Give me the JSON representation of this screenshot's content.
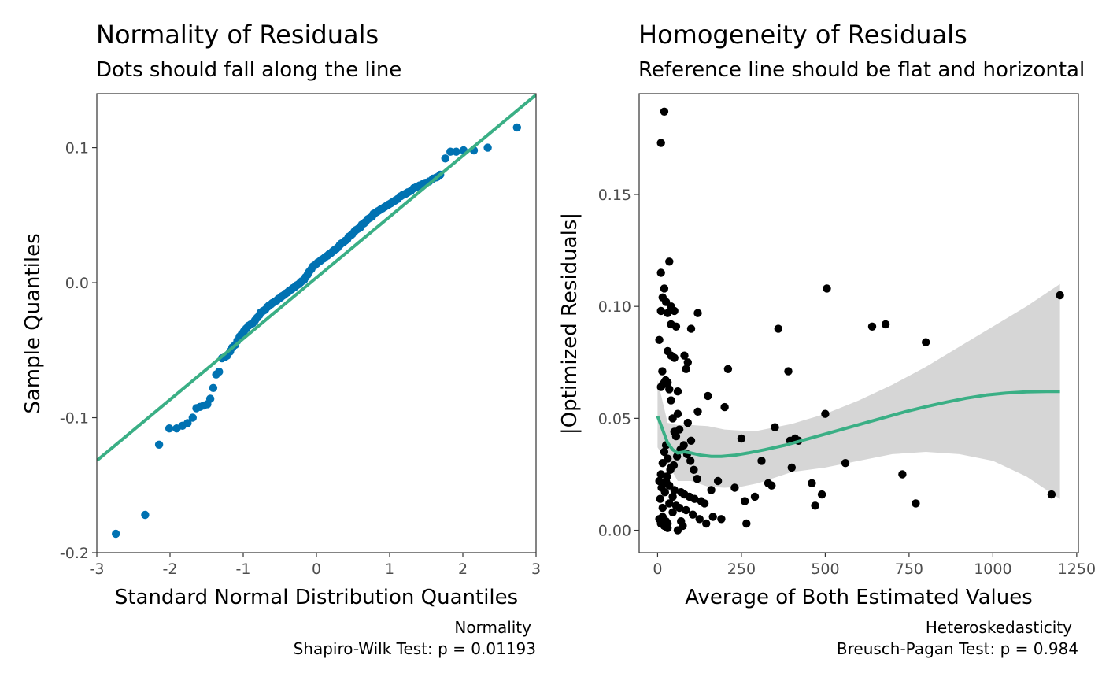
{
  "chart_data": [
    {
      "type": "scatter",
      "title": "Normality of Residuals",
      "subtitle": "Dots should fall along the line",
      "xlabel": "Standard Normal Distribution Quantiles",
      "ylabel": "Sample Quantiles",
      "xlim": [
        -3,
        3
      ],
      "ylim": [
        -0.2,
        0.14
      ],
      "xticks": [
        -3,
        -2,
        -1,
        0,
        1,
        2,
        3
      ],
      "xtick_labels": [
        "-3",
        "-2",
        "-1",
        "0",
        "1",
        "2",
        "3"
      ],
      "yticks": [
        -0.2,
        -0.1,
        0.0,
        0.1
      ],
      "ytick_labels": [
        "-0.2",
        "-0.1",
        "0.0",
        "0.1"
      ],
      "grid": false,
      "colors": {
        "points": "#0072B2",
        "line": "#3AAF85"
      },
      "reference_line": {
        "x": [
          -3,
          3
        ],
        "y": [
          -0.1318,
          0.1392
        ]
      },
      "points": {
        "x": [
          -2.74,
          -2.34,
          -2.15,
          -2.01,
          -1.91,
          -1.83,
          -1.76,
          -1.69,
          -1.64,
          -1.59,
          -1.54,
          -1.49,
          -1.45,
          -1.41,
          -1.37,
          -1.33,
          -1.29,
          -1.25,
          -1.22,
          -1.18,
          -1.15,
          -1.11,
          -1.08,
          -1.05,
          -1.02,
          -0.99,
          -0.96,
          -0.93,
          -0.9,
          -0.87,
          -0.84,
          -0.81,
          -0.78,
          -0.76,
          -0.73,
          -0.7,
          -0.67,
          -0.65,
          -0.62,
          -0.6,
          -0.57,
          -0.54,
          -0.52,
          -0.49,
          -0.47,
          -0.44,
          -0.42,
          -0.39,
          -0.37,
          -0.34,
          -0.32,
          -0.29,
          -0.27,
          -0.24,
          -0.22,
          -0.2,
          -0.17,
          -0.15,
          -0.12,
          -0.1,
          -0.07,
          -0.05,
          -0.02,
          0.0,
          0.02,
          0.05,
          0.07,
          0.1,
          0.12,
          0.15,
          0.17,
          0.2,
          0.22,
          0.24,
          0.27,
          0.29,
          0.32,
          0.34,
          0.37,
          0.39,
          0.42,
          0.44,
          0.47,
          0.49,
          0.52,
          0.54,
          0.57,
          0.6,
          0.62,
          0.65,
          0.67,
          0.7,
          0.73,
          0.76,
          0.78,
          0.81,
          0.84,
          0.87,
          0.9,
          0.93,
          0.96,
          0.99,
          1.02,
          1.05,
          1.08,
          1.11,
          1.15,
          1.18,
          1.22,
          1.25,
          1.29,
          1.33,
          1.37,
          1.41,
          1.45,
          1.49,
          1.54,
          1.59,
          1.64,
          1.69,
          1.76,
          1.83,
          1.91,
          2.01,
          2.15,
          2.34,
          2.74
        ],
        "y": [
          -0.186,
          -0.172,
          -0.12,
          -0.108,
          -0.108,
          -0.106,
          -0.104,
          -0.1,
          -0.093,
          -0.092,
          -0.091,
          -0.09,
          -0.086,
          -0.078,
          -0.068,
          -0.066,
          -0.056,
          -0.055,
          -0.054,
          -0.051,
          -0.048,
          -0.046,
          -0.043,
          -0.04,
          -0.038,
          -0.036,
          -0.034,
          -0.032,
          -0.031,
          -0.03,
          -0.028,
          -0.026,
          -0.024,
          -0.022,
          -0.021,
          -0.02,
          -0.018,
          -0.017,
          -0.016,
          -0.015,
          -0.014,
          -0.013,
          -0.012,
          -0.011,
          -0.01,
          -0.009,
          -0.008,
          -0.007,
          -0.006,
          -0.005,
          -0.004,
          -0.003,
          -0.002,
          -0.001,
          0.0,
          0.001,
          0.002,
          0.004,
          0.006,
          0.008,
          0.01,
          0.012,
          0.013,
          0.014,
          0.015,
          0.016,
          0.017,
          0.018,
          0.019,
          0.02,
          0.021,
          0.022,
          0.023,
          0.024,
          0.025,
          0.026,
          0.028,
          0.029,
          0.03,
          0.031,
          0.032,
          0.034,
          0.035,
          0.036,
          0.038,
          0.039,
          0.04,
          0.041,
          0.043,
          0.044,
          0.045,
          0.047,
          0.048,
          0.049,
          0.051,
          0.052,
          0.053,
          0.054,
          0.055,
          0.056,
          0.057,
          0.058,
          0.059,
          0.06,
          0.061,
          0.062,
          0.064,
          0.065,
          0.066,
          0.067,
          0.068,
          0.07,
          0.071,
          0.072,
          0.073,
          0.074,
          0.075,
          0.077,
          0.078,
          0.08,
          0.092,
          0.097,
          0.097,
          0.098,
          0.098,
          0.1,
          0.115
        ]
      },
      "caption": [
        "Normality",
        "Shapiro-Wilk Test: p = 0.01193"
      ]
    },
    {
      "type": "scatter",
      "title": "Homogeneity of Residuals",
      "subtitle": "Reference line should be flat and horizontal",
      "xlabel": "Average of Both Estimated Values",
      "ylabel": "|Optimized Residuals|",
      "xlim": [
        -55,
        1255
      ],
      "ylim": [
        -0.01,
        0.195
      ],
      "xticks": [
        0,
        250,
        500,
        750,
        1000,
        1250
      ],
      "xtick_labels": [
        "0",
        "250",
        "500",
        "750",
        "1000",
        "1250"
      ],
      "yticks": [
        0.0,
        0.05,
        0.1,
        0.15
      ],
      "ytick_labels": [
        "0.00",
        "0.05",
        "0.10",
        "0.15"
      ],
      "grid": false,
      "colors": {
        "points": "#000000",
        "line": "#3AAF85",
        "band": "#d6d6d6"
      },
      "smooth_line": {
        "x": [
          0,
          10,
          20,
          30,
          45,
          60,
          80,
          100,
          130,
          160,
          190,
          230,
          270,
          320,
          380,
          440,
          500,
          560,
          620,
          680,
          740,
          800,
          860,
          920,
          980,
          1040,
          1100,
          1160,
          1200
        ],
        "y": [
          0.051,
          0.047,
          0.043,
          0.039,
          0.036,
          0.0345,
          0.035,
          0.0345,
          0.0335,
          0.033,
          0.033,
          0.0335,
          0.0345,
          0.036,
          0.038,
          0.0405,
          0.043,
          0.0455,
          0.048,
          0.0505,
          0.053,
          0.0552,
          0.0572,
          0.059,
          0.0604,
          0.0613,
          0.0618,
          0.062,
          0.062
        ]
      },
      "confidence_band": {
        "x": [
          0,
          30,
          60,
          100,
          150,
          200,
          250,
          300,
          400,
          500,
          600,
          700,
          800,
          900,
          1000,
          1100,
          1200
        ],
        "upper": [
          0.067,
          0.048,
          0.047,
          0.047,
          0.0465,
          0.045,
          0.0445,
          0.0445,
          0.0475,
          0.052,
          0.058,
          0.065,
          0.073,
          0.082,
          0.091,
          0.1,
          0.11
        ],
        "lower": [
          0.037,
          0.03,
          0.022,
          0.022,
          0.0195,
          0.019,
          0.0195,
          0.021,
          0.026,
          0.028,
          0.031,
          0.034,
          0.035,
          0.034,
          0.031,
          0.024,
          0.014
        ]
      },
      "points": {
        "x": [
          20,
          10,
          35,
          10,
          20,
          15,
          10,
          25,
          40,
          30,
          50,
          55,
          40,
          100,
          120,
          5,
          30,
          40,
          80,
          50,
          90,
          85,
          20,
          10,
          15,
          30,
          35,
          60,
          150,
          200,
          120,
          210,
          250,
          45,
          60,
          65,
          90,
          100,
          55,
          25,
          20,
          15,
          30,
          40,
          10,
          5,
          25,
          35,
          50,
          70,
          80,
          95,
          110,
          130,
          140,
          160,
          180,
          230,
          260,
          290,
          310,
          340,
          350,
          360,
          390,
          400,
          410,
          420,
          460,
          470,
          490,
          500,
          505,
          560,
          640,
          680,
          730,
          770,
          800,
          1175,
          1200,
          5,
          15,
          25,
          45,
          65,
          85,
          105,
          125,
          145,
          165,
          10,
          20,
          30,
          60,
          70,
          75,
          30,
          15,
          35,
          45,
          55,
          22,
          12,
          8,
          18,
          28,
          38,
          48,
          58,
          68,
          78,
          88,
          98,
          108,
          118,
          190,
          265,
          330,
          395,
          50,
          40,
          24,
          14
        ],
        "y": [
          0.187,
          0.173,
          0.12,
          0.115,
          0.108,
          0.104,
          0.098,
          0.102,
          0.1,
          0.097,
          0.098,
          0.091,
          0.092,
          0.09,
          0.097,
          0.085,
          0.08,
          0.078,
          0.078,
          0.077,
          0.075,
          0.072,
          0.066,
          0.064,
          0.065,
          0.066,
          0.063,
          0.062,
          0.06,
          0.055,
          0.053,
          0.072,
          0.041,
          0.05,
          0.052,
          0.045,
          0.048,
          0.04,
          0.042,
          0.038,
          0.035,
          0.03,
          0.032,
          0.028,
          0.025,
          0.022,
          0.022,
          0.02,
          0.018,
          0.017,
          0.016,
          0.015,
          0.014,
          0.013,
          0.012,
          0.018,
          0.022,
          0.019,
          0.013,
          0.015,
          0.031,
          0.02,
          0.046,
          0.09,
          0.071,
          0.028,
          0.041,
          0.04,
          0.021,
          0.011,
          0.016,
          0.052,
          0.108,
          0.03,
          0.091,
          0.092,
          0.025,
          0.012,
          0.084,
          0.016,
          0.105,
          0.005,
          0.006,
          0.004,
          0.008,
          0.01,
          0.009,
          0.007,
          0.005,
          0.003,
          0.006,
          0.003,
          0.002,
          0.001,
          0.0,
          0.004,
          0.002,
          0.003,
          0.01,
          0.012,
          0.015,
          0.011,
          0.017,
          0.019,
          0.014,
          0.021,
          0.024,
          0.027,
          0.029,
          0.033,
          0.036,
          0.038,
          0.034,
          0.031,
          0.027,
          0.023,
          0.005,
          0.003,
          0.021,
          0.04,
          0.044,
          0.058,
          0.067,
          0.071
        ]
      },
      "caption": [
        "Heteroskedasticity",
        "Breusch-Pagan Test: p = 0.984"
      ]
    }
  ]
}
